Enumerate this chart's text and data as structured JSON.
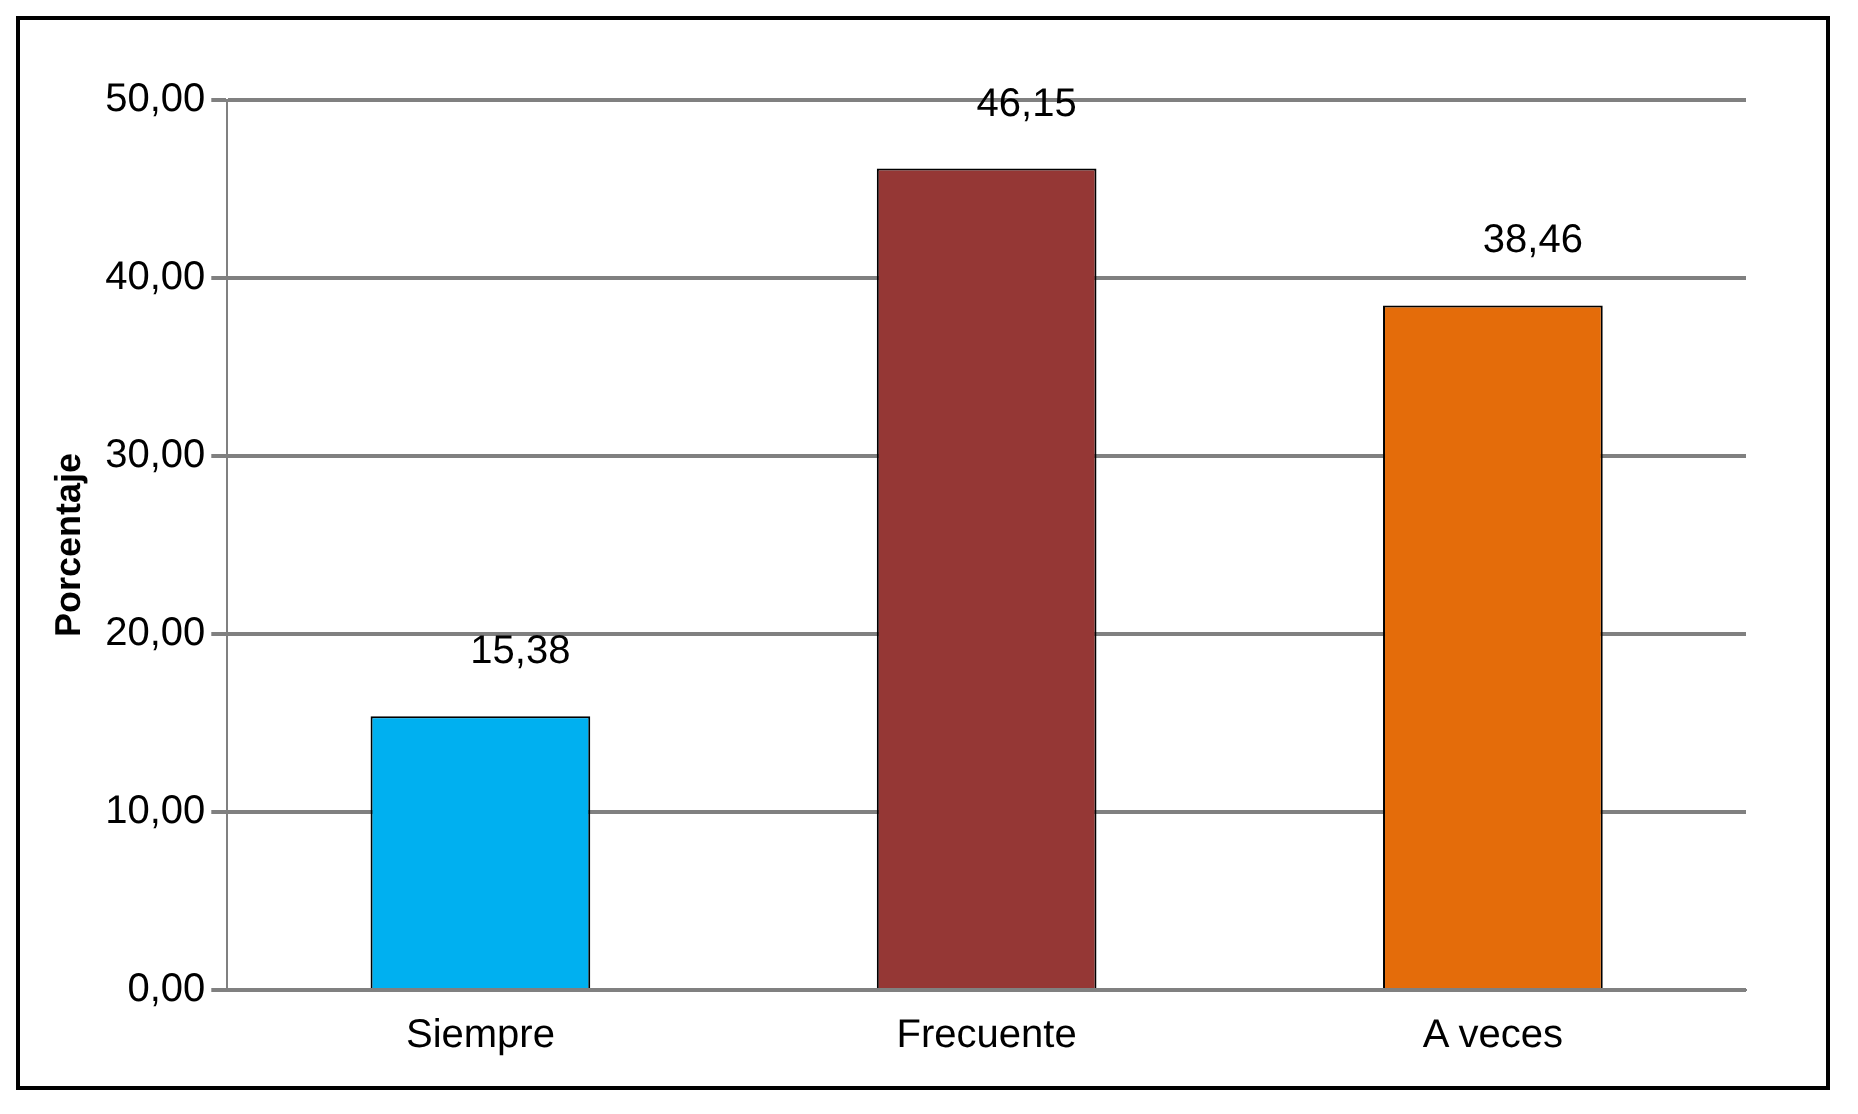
{
  "chart_data": {
    "type": "bar",
    "ylabel": "Porcentaje",
    "categories": [
      "Siempre",
      "Frecuente",
      "A veces"
    ],
    "values": [
      15.38,
      46.15,
      38.46
    ],
    "colors": [
      "#00b0f0",
      "#953735",
      "#e46c0a"
    ],
    "value_labels": [
      "15,38",
      "46,15",
      "38,46"
    ],
    "ylim": [
      0,
      50
    ],
    "yticks": [
      {
        "value": 0,
        "label": "0,00"
      },
      {
        "value": 10,
        "label": "10,00"
      },
      {
        "value": 20,
        "label": "20,00"
      },
      {
        "value": 30,
        "label": "30,00"
      },
      {
        "value": 40,
        "label": "40,00"
      },
      {
        "value": 50,
        "label": "50,00"
      }
    ],
    "grid": "y",
    "legend": false
  }
}
